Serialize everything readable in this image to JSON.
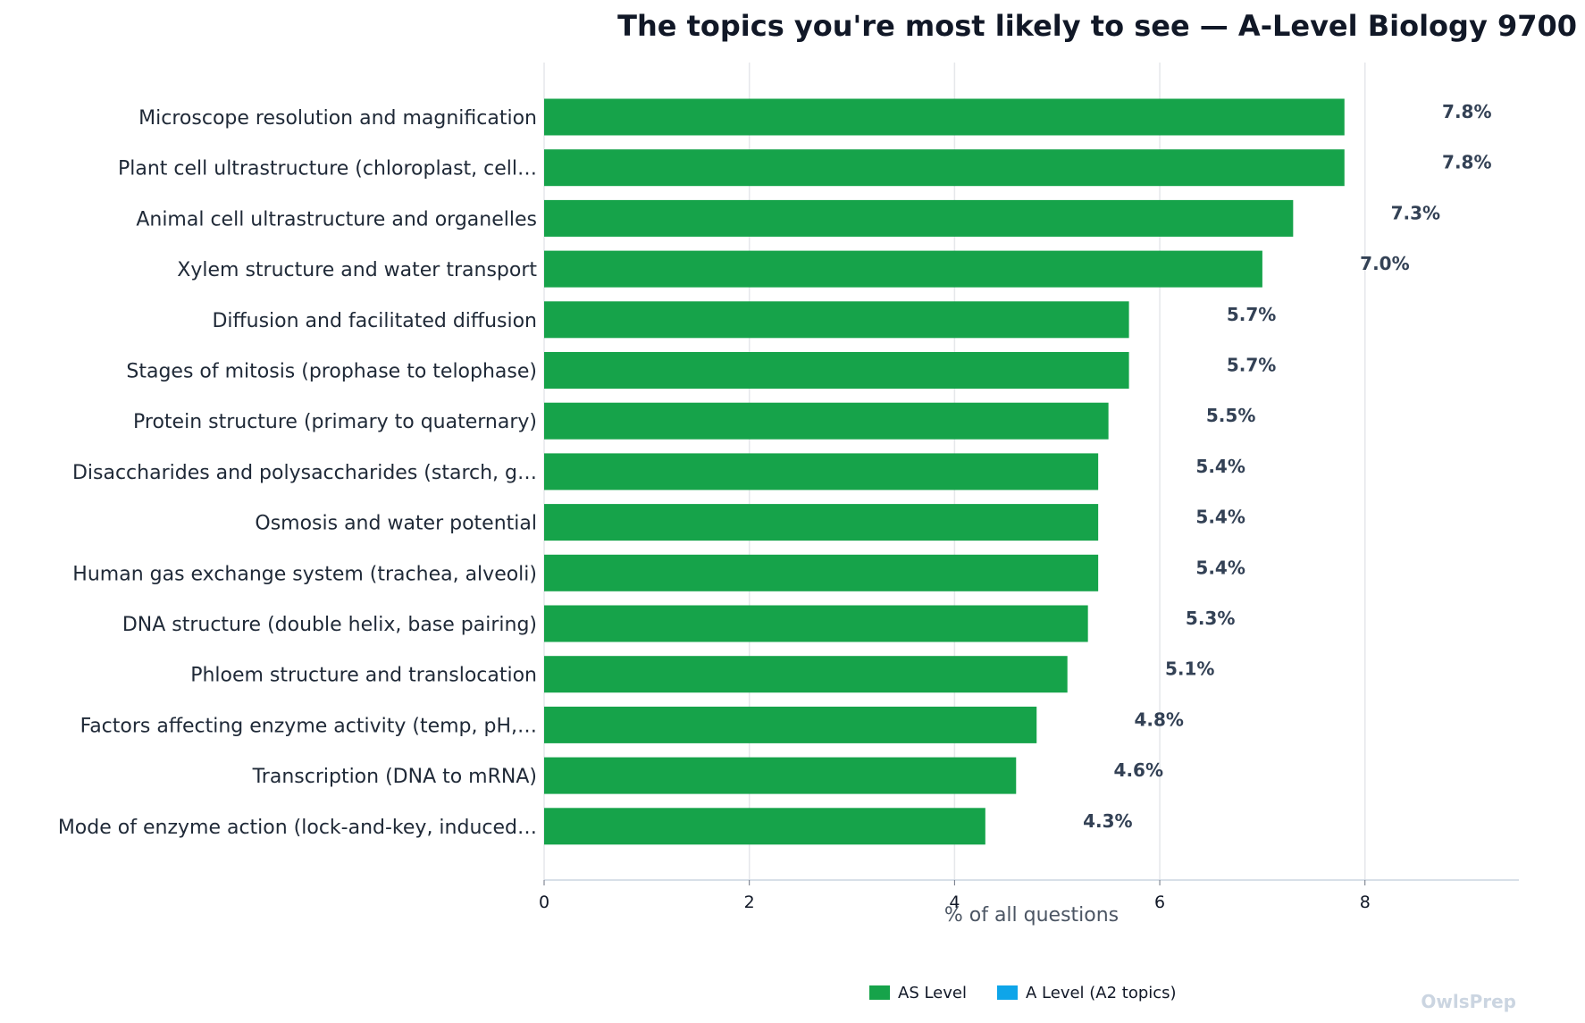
{
  "chart_data": {
    "type": "bar",
    "orientation": "horizontal",
    "title": "The topics you're most likely to see — A-Level Biology 9700",
    "xlabel": "% of all questions",
    "ylabel": "",
    "xlim": [
      0,
      9.5
    ],
    "xticks": [
      "0",
      "2",
      "4",
      "6",
      "8"
    ],
    "grid": true,
    "legend_position": "bottom-center",
    "categories": [
      "Microscope resolution and magnification",
      "Plant cell ultrastructure (chloroplast, cell…",
      "Animal cell ultrastructure and organelles",
      "Xylem structure and water transport",
      "Diffusion and facilitated diffusion",
      "Stages of mitosis (prophase to telophase)",
      "Protein structure (primary to quaternary)",
      "Disaccharides and polysaccharides (starch, g…",
      "Osmosis and water potential",
      "Human gas exchange system (trachea, alveoli)",
      "DNA structure (double helix, base pairing)",
      "Phloem structure and translocation",
      "Factors affecting enzyme activity (temp, pH,…",
      "Transcription (DNA to mRNA)",
      "Mode of enzyme action (lock-and-key, induced…"
    ],
    "values": [
      7.8,
      7.8,
      7.3,
      7.0,
      5.7,
      5.7,
      5.5,
      5.4,
      5.4,
      5.4,
      5.3,
      5.1,
      4.8,
      4.6,
      4.3
    ],
    "value_labels": [
      "7.8%",
      "7.8%",
      "7.3%",
      "7.0%",
      "5.7%",
      "5.7%",
      "5.5%",
      "5.4%",
      "5.4%",
      "5.4%",
      "5.3%",
      "5.1%",
      "4.8%",
      "4.6%",
      "4.3%"
    ],
    "levels": [
      "AS",
      "AS",
      "AS",
      "AS",
      "AS",
      "AS",
      "AS",
      "AS",
      "AS",
      "AS",
      "AS",
      "AS",
      "AS",
      "AS",
      "AS"
    ],
    "legend": [
      {
        "name": "AS Level",
        "color": "#16a34a"
      },
      {
        "name": "A Level (A2 topics)",
        "color": "#0ea5e9"
      }
    ]
  },
  "colors": {
    "as_level": "#16a34a",
    "a_level": "#0ea5e9",
    "grid": "#e5e7eb",
    "axis": "#cbd5e1"
  },
  "watermark": "OwlsPrep"
}
